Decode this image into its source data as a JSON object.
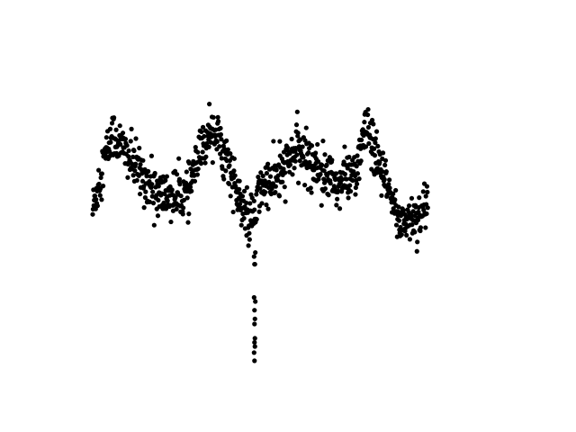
{
  "chart_data": {
    "type": "scatter",
    "title": "",
    "xlabel": "",
    "ylabel": "",
    "axes_visible": false,
    "grid": false,
    "legend": "none",
    "marker_color": "#000000",
    "xlim": [
      0,
      1
    ],
    "ylim": [
      0.35,
      1.0
    ],
    "anchors": [
      [
        0.0,
        0.69
      ],
      [
        0.02,
        0.77
      ],
      [
        0.05,
        0.84
      ],
      [
        0.1,
        0.78
      ],
      [
        0.16,
        0.72
      ],
      [
        0.23,
        0.72
      ],
      [
        0.29,
        0.86
      ],
      [
        0.33,
        0.79
      ],
      [
        0.365,
        0.69
      ],
      [
        0.394,
        0.67
      ],
      [
        0.41,
        0.735
      ],
      [
        0.45,
        0.75
      ],
      [
        0.5,
        0.81
      ],
      [
        0.53,
        0.79
      ],
      [
        0.6,
        0.74
      ],
      [
        0.645,
        0.77
      ],
      [
        0.67,
        0.85
      ],
      [
        0.7,
        0.78
      ],
      [
        0.75,
        0.67
      ],
      [
        0.8,
        0.68
      ],
      [
        0.82,
        0.71
      ]
    ],
    "noise": 0.024,
    "point_count": 900,
    "transit_points": [
      [
        0.395,
        0.6
      ],
      [
        0.396,
        0.585
      ],
      [
        0.398,
        0.608
      ],
      [
        0.397,
        0.585
      ],
      [
        0.395,
        0.52
      ],
      [
        0.398,
        0.512
      ],
      [
        0.396,
        0.495
      ],
      [
        0.397,
        0.478
      ],
      [
        0.396,
        0.468
      ],
      [
        0.397,
        0.44
      ],
      [
        0.396,
        0.432
      ],
      [
        0.397,
        0.424
      ],
      [
        0.395,
        0.412
      ],
      [
        0.396,
        0.396
      ]
    ]
  }
}
